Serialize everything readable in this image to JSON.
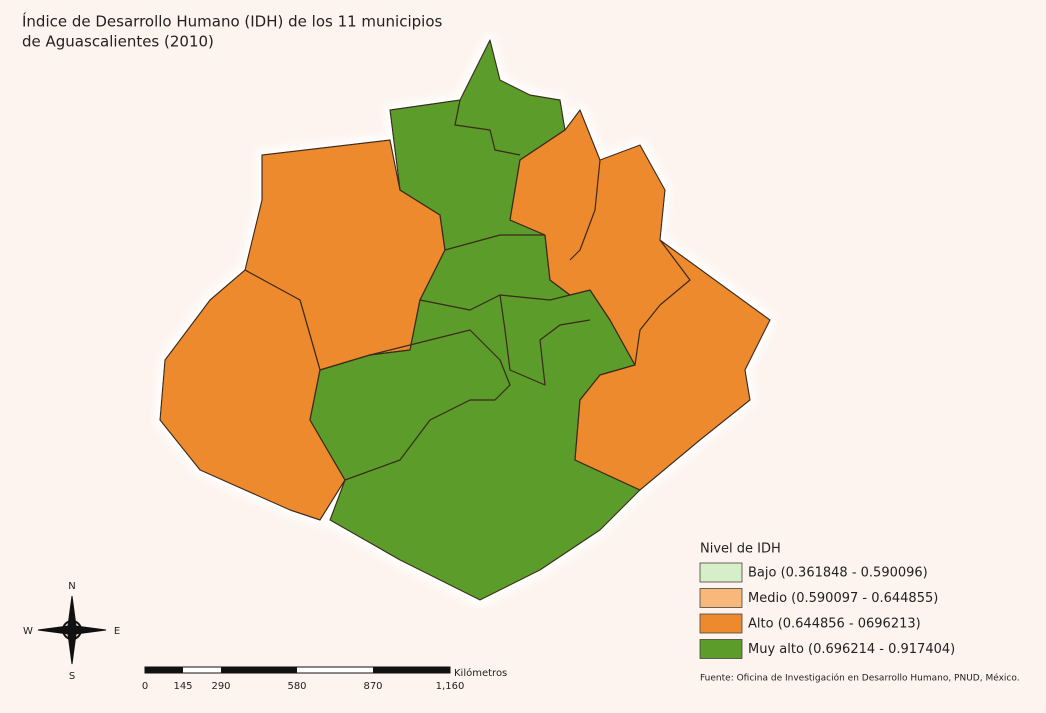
{
  "title": [
    "Índice de Desarrollo Humano (IDH) de los 11 municipios",
    "de Aguascalientes (2010)"
  ],
  "legend": {
    "title": "Nivel de IDH",
    "items": [
      {
        "label": "Bajo (0.361848 - 0.590096)",
        "color": "#d6efc9"
      },
      {
        "label": "Medio (0.590097 - 0.644855)",
        "color": "#f7b87a"
      },
      {
        "label": "Alto (0.644856 - 0696213)",
        "color": "#ee8a2e"
      },
      {
        "label": "Muy alto (0.696214 - 0.917404)",
        "color": "#5c9c2a"
      }
    ]
  },
  "compass": {
    "n": "N",
    "s": "S",
    "w": "W",
    "e": "E"
  },
  "scale": {
    "unit": "Kilómetros",
    "labels": [
      "0",
      "145",
      "290",
      "580",
      "870",
      "1,160"
    ]
  },
  "source": "Fuente: Oficina de Investigación en Desarrollo Humano, PNUD, México."
}
